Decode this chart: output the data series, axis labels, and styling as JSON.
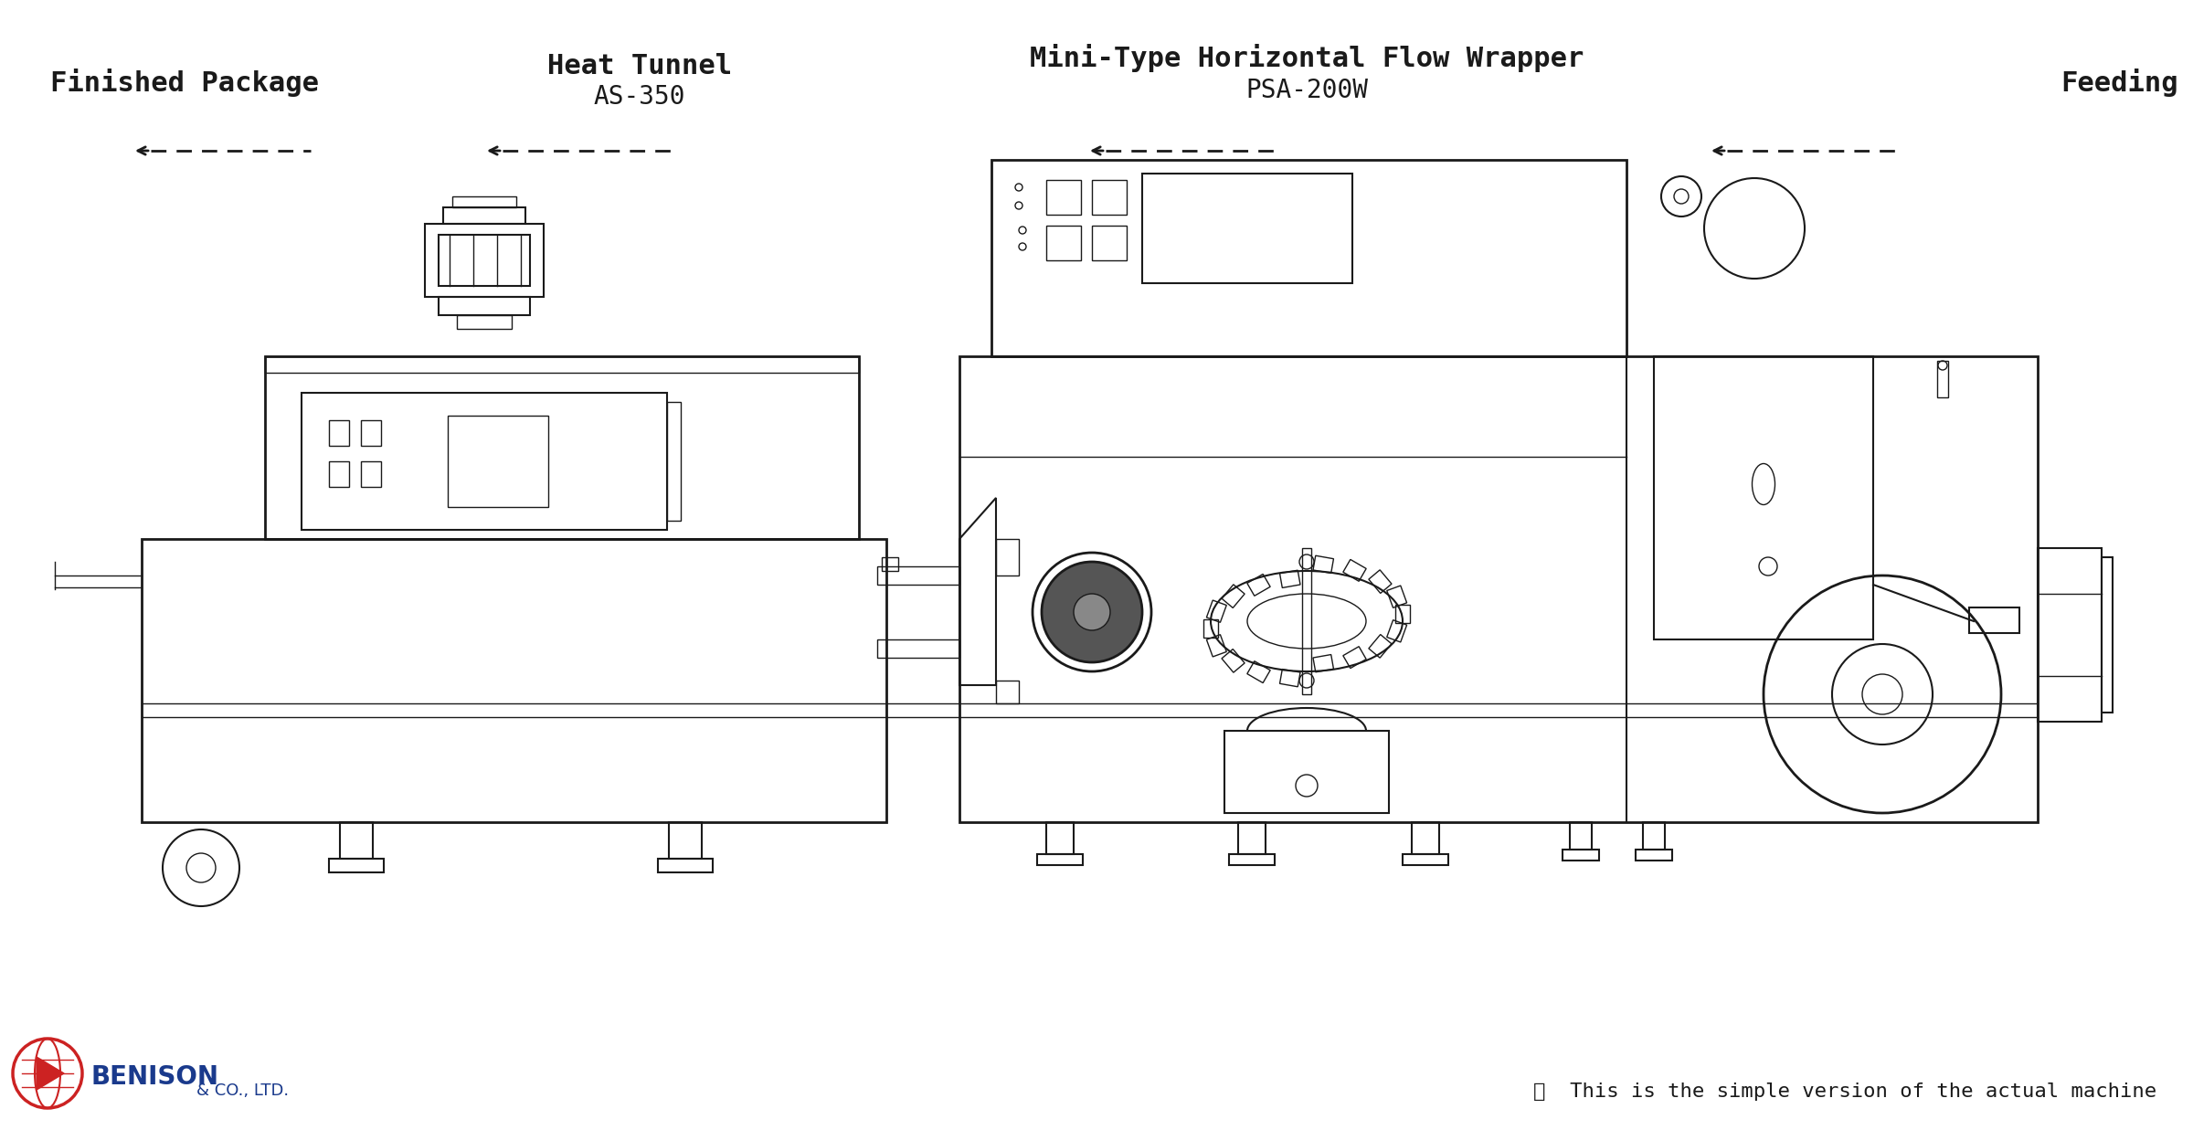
{
  "bg_color": "#ffffff",
  "line_color": "#1a1a1a",
  "title1": "Finished Package",
  "title2": "Heat Tunnel",
  "title2_sub": "AS-350",
  "title3": "Mini-Type Horizontal Flow Wrapper",
  "title3_sub": "PSA-200W",
  "title4": "Feeding",
  "footer_note": "※  This is the simple version of the actual machine",
  "benison_text": "BENISON",
  "benison_sub": "& CO., LTD.",
  "benison_color": "#1a3a8c",
  "benison_red": "#cc2222"
}
